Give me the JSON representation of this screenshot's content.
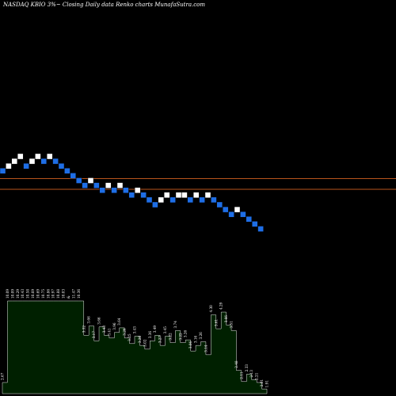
{
  "header": {
    "title": "NASDAQ KBIO 3%~ Closing Daily data Renko charts MunafaSutra.com"
  },
  "chart_data": {
    "type": "renko",
    "colors": {
      "up_brick": "#ffffff",
      "down_brick": "#1e6ee6",
      "reference_line": "#b8541c",
      "volume_fill": "#002000",
      "volume_stroke": "#e8e8e8",
      "background": "#000000"
    },
    "bricks": [
      {
        "dir": "down",
        "level": 2
      },
      {
        "dir": "up",
        "level": 3
      },
      {
        "dir": "up",
        "level": 4
      },
      {
        "dir": "up",
        "level": 5
      },
      {
        "dir": "down",
        "level": 3
      },
      {
        "dir": "up",
        "level": 4
      },
      {
        "dir": "up",
        "level": 5
      },
      {
        "dir": "down",
        "level": 4
      },
      {
        "dir": "up",
        "level": 5
      },
      {
        "dir": "down",
        "level": 4
      },
      {
        "dir": "down",
        "level": 3
      },
      {
        "dir": "down",
        "level": 2
      },
      {
        "dir": "down",
        "level": 1
      },
      {
        "dir": "down",
        "level": 0
      },
      {
        "dir": "down",
        "level": -1
      },
      {
        "dir": "up",
        "level": 0
      },
      {
        "dir": "down",
        "level": -1
      },
      {
        "dir": "down",
        "level": -2
      },
      {
        "dir": "up",
        "level": -1
      },
      {
        "dir": "down",
        "level": -2
      },
      {
        "dir": "up",
        "level": -1
      },
      {
        "dir": "down",
        "level": -2
      },
      {
        "dir": "down",
        "level": -3
      },
      {
        "dir": "up",
        "level": -2
      },
      {
        "dir": "down",
        "level": -3
      },
      {
        "dir": "down",
        "level": -4
      },
      {
        "dir": "down",
        "level": -5
      },
      {
        "dir": "up",
        "level": -4
      },
      {
        "dir": "up",
        "level": -3
      },
      {
        "dir": "down",
        "level": -4
      },
      {
        "dir": "up",
        "level": -3
      },
      {
        "dir": "up",
        "level": -3
      },
      {
        "dir": "down",
        "level": -4
      },
      {
        "dir": "up",
        "level": -3
      },
      {
        "dir": "down",
        "level": -4
      },
      {
        "dir": "up",
        "level": -3
      },
      {
        "dir": "down",
        "level": -4
      },
      {
        "dir": "down",
        "level": -5
      },
      {
        "dir": "down",
        "level": -6
      },
      {
        "dir": "down",
        "level": -7
      },
      {
        "dir": "up",
        "level": -6
      },
      {
        "dir": "down",
        "level": -7
      },
      {
        "dir": "down",
        "level": -8
      },
      {
        "dir": "down",
        "level": -9
      },
      {
        "dir": "down",
        "level": -10
      }
    ],
    "reference_lines": [
      0.4,
      -1.8
    ],
    "volume": {
      "labels": [
        {
          "text": "2.67",
          "v": 0.12
        },
        {
          "text": "10.09",
          "v": 1.0
        },
        {
          "text": "10.09",
          "v": 1.0
        },
        {
          "text": "10.29",
          "v": 1.0
        },
        {
          "text": "10.43",
          "v": 1.0
        },
        {
          "text": "10.58",
          "v": 1.0
        },
        {
          "text": "10.69",
          "v": 1.0
        },
        {
          "text": "10.69",
          "v": 1.0
        },
        {
          "text": "10.75",
          "v": 1.0
        },
        {
          "text": "10.86",
          "v": 1.0
        },
        {
          "text": "10.97",
          "v": 1.0
        },
        {
          "text": "10.88",
          "v": 1.0
        },
        {
          "text": "10.03",
          "v": 1.0
        },
        {
          "text": "&",
          "v": 1.0
        },
        {
          "text": "11.47",
          "v": 1.0
        },
        {
          "text": "10.36",
          "v": 1.0
        },
        {
          "text": "3.32",
          "v": 0.63
        },
        {
          "text": "3.66",
          "v": 0.73
        },
        {
          "text": "3.17",
          "v": 0.57
        },
        {
          "text": "3.66",
          "v": 0.72
        },
        {
          "text": "3.43",
          "v": 0.63
        },
        {
          "text": "3.41",
          "v": 0.6
        },
        {
          "text": "3.96",
          "v": 0.66
        },
        {
          "text": "3.64",
          "v": 0.71
        },
        {
          "text": "3.26",
          "v": 0.6
        },
        {
          "text": "3.25",
          "v": 0.54
        },
        {
          "text": "3.43",
          "v": 0.62
        },
        {
          "text": "3.20",
          "v": 0.52
        },
        {
          "text": "3.02",
          "v": 0.48
        },
        {
          "text": "3.36",
          "v": 0.57
        },
        {
          "text": "3.49",
          "v": 0.63
        },
        {
          "text": "3.27",
          "v": 0.52
        },
        {
          "text": "3.45",
          "v": 0.62
        },
        {
          "text": "3.22",
          "v": 0.55
        },
        {
          "text": "3.74",
          "v": 0.68
        },
        {
          "text": "3.22",
          "v": 0.55
        },
        {
          "text": "3.26",
          "v": 0.58
        },
        {
          "text": "3.06",
          "v": 0.46
        },
        {
          "text": "3.16",
          "v": 0.52
        },
        {
          "text": "3.26",
          "v": 0.56
        },
        {
          "text": "3.14",
          "v": 0.42
        },
        {
          "text": "4.30",
          "v": 0.85
        },
        {
          "text": "3.61",
          "v": 0.7
        },
        {
          "text": "4.29",
          "v": 0.88
        },
        {
          "text": "3.66",
          "v": 0.74
        },
        {
          "text": "3.51",
          "v": 0.68
        },
        {
          "text": "2.48",
          "v": 0.25
        },
        {
          "text": "2.11",
          "v": 0.13
        },
        {
          "text": "2.33",
          "v": 0.21
        },
        {
          "text": "2.13",
          "v": 0.15
        },
        {
          "text": "2.21",
          "v": 0.12
        },
        {
          "text": "2.01",
          "v": 0.05
        },
        {
          "text": "1.91",
          "v": 0.04
        }
      ]
    }
  }
}
